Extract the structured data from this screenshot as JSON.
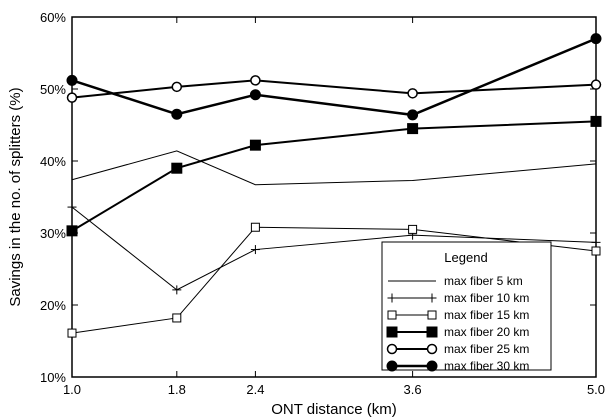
{
  "chart_data": {
    "type": "line",
    "title": "",
    "xlabel": "ONT distance (km)",
    "ylabel": "Savings in the no. of splitters (%)",
    "x": [
      1.0,
      1.8,
      2.4,
      3.6,
      5.0
    ],
    "x_tick_labels": [
      "1.0",
      "1.8",
      "2.4",
      "3.6",
      "5.0"
    ],
    "ylim": [
      10,
      60
    ],
    "y_ticks": [
      10,
      20,
      30,
      40,
      50,
      60
    ],
    "y_tick_labels": [
      "10%",
      "20%",
      "30%",
      "40%",
      "50%",
      "60%"
    ],
    "grid": false,
    "legend": {
      "title": "Legend",
      "placement": "bottom-right"
    },
    "series": [
      {
        "name": "max fiber 5 km",
        "marker": "none",
        "stroke_width": 1,
        "values": [
          37.4,
          41.4,
          36.7,
          37.3,
          39.6
        ]
      },
      {
        "name": "max fiber 10 km",
        "marker": "plus",
        "stroke_width": 1,
        "values": [
          33.6,
          22.1,
          27.7,
          29.7,
          28.7
        ]
      },
      {
        "name": "max fiber 15 km",
        "marker": "open-square",
        "stroke_width": 1,
        "values": [
          16.1,
          18.2,
          30.8,
          30.5,
          27.5
        ]
      },
      {
        "name": "max fiber 20 km",
        "marker": "filled-square",
        "stroke_width": 2,
        "values": [
          30.3,
          39.0,
          42.2,
          44.5,
          45.5
        ]
      },
      {
        "name": "max fiber 25 km",
        "marker": "open-circle",
        "stroke_width": 2,
        "values": [
          48.8,
          50.3,
          51.2,
          49.4,
          50.6
        ]
      },
      {
        "name": "max fiber 30 km",
        "marker": "filled-circle",
        "stroke_width": 2.5,
        "values": [
          51.2,
          46.5,
          49.2,
          46.4,
          57.0
        ]
      }
    ]
  }
}
